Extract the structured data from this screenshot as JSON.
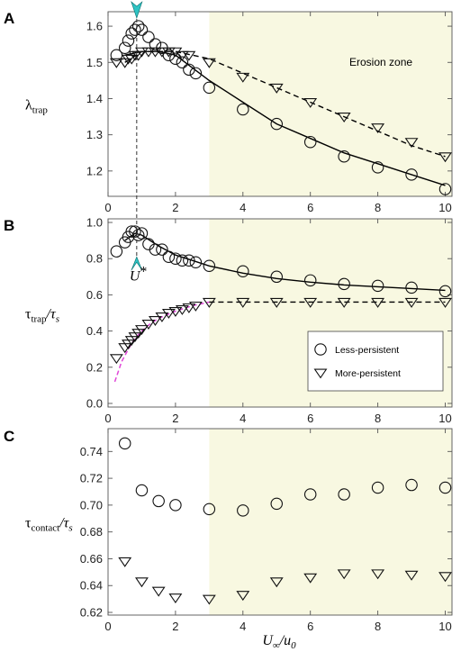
{
  "colors": {
    "erosion_zone": "#f8f8e1",
    "axis": "#555555",
    "marker": "#111111",
    "fit_magenta": "#e046d8",
    "arrow_cyan": "#2ec4c4"
  },
  "annotations": {
    "erosion_zone_label": "Erosion zone",
    "ustar_label": "U*",
    "erosion_start_x": 3,
    "ustar_x": 0.85
  },
  "x_axis": {
    "label": "U∞/u0",
    "label_main": "U",
    "label_sub1": "∞",
    "label_mid": "/u",
    "label_sub2": "0",
    "ticks": [
      0,
      2,
      4,
      6,
      8,
      10
    ],
    "tick_labels": [
      "0",
      "2",
      "4",
      "6",
      "8",
      "10"
    ],
    "xlim": [
      0,
      10.2
    ]
  },
  "legend": {
    "circle_label": "Less-persistent",
    "triangle_label": "More-persistent"
  },
  "chart_data": [
    {
      "panel": "A",
      "type": "scatter",
      "ylabel": "λtrap",
      "ylabel_main": "λ",
      "ylabel_sub": "trap",
      "ylim": [
        1.13,
        1.64
      ],
      "yticks": [
        1.2,
        1.3,
        1.4,
        1.5,
        1.6
      ],
      "ytick_labels": [
        "1.2",
        "1.3",
        "1.4",
        "1.5",
        "1.6"
      ],
      "series": [
        {
          "name": "Less-persistent",
          "marker": "circle",
          "x": [
            0.25,
            0.5,
            0.6,
            0.7,
            0.8,
            0.9,
            1.0,
            1.2,
            1.4,
            1.6,
            1.8,
            2.0,
            2.2,
            2.4,
            2.6,
            3.0,
            4.0,
            5.0,
            6.0,
            7.0,
            8.0,
            9.0,
            10.0
          ],
          "y": [
            1.52,
            1.54,
            1.56,
            1.58,
            1.59,
            1.6,
            1.59,
            1.57,
            1.55,
            1.54,
            1.52,
            1.51,
            1.5,
            1.48,
            1.47,
            1.43,
            1.37,
            1.33,
            1.28,
            1.24,
            1.21,
            1.19,
            1.15
          ]
        },
        {
          "name": "More-persistent",
          "marker": "triangle",
          "x": [
            0.25,
            0.5,
            0.6,
            0.7,
            0.8,
            0.9,
            1.0,
            1.2,
            1.4,
            1.6,
            1.8,
            2.0,
            2.2,
            2.4,
            3.0,
            4.0,
            5.0,
            6.0,
            7.0,
            8.0,
            9.0,
            10.0
          ],
          "y": [
            1.5,
            1.5,
            1.51,
            1.51,
            1.52,
            1.52,
            1.53,
            1.53,
            1.53,
            1.53,
            1.53,
            1.53,
            1.52,
            1.52,
            1.5,
            1.46,
            1.43,
            1.39,
            1.35,
            1.32,
            1.28,
            1.24
          ]
        }
      ],
      "fits": [
        {
          "style": "solid",
          "x": [
            0.5,
            1.0,
            1.5,
            2.0,
            3.0,
            4.0,
            5.0,
            6.0,
            7.0,
            8.0,
            9.0,
            10.0
          ],
          "y": [
            1.52,
            1.53,
            1.53,
            1.52,
            1.45,
            1.39,
            1.33,
            1.29,
            1.25,
            1.22,
            1.19,
            1.16
          ]
        },
        {
          "style": "dashed",
          "x": [
            0.5,
            1.0,
            2.0,
            3.0,
            4.0,
            5.0,
            6.0,
            7.0,
            8.0,
            9.0,
            10.0
          ],
          "y": [
            1.5,
            1.53,
            1.53,
            1.51,
            1.47,
            1.43,
            1.39,
            1.35,
            1.31,
            1.27,
            1.24
          ]
        }
      ]
    },
    {
      "panel": "B",
      "type": "scatter",
      "ylabel": "τtrap/τs",
      "ylabel_main": "τ",
      "ylabel_sub": "trap",
      "ylabel_tail": "/τ",
      "ylabel_sub2": "s",
      "ylim": [
        -0.02,
        1.02
      ],
      "yticks": [
        0.0,
        0.2,
        0.4,
        0.6,
        0.8,
        1.0
      ],
      "ytick_labels": [
        "0.0",
        "0.2",
        "0.4",
        "0.6",
        "0.8",
        "1.0"
      ],
      "legend_position": "lower-right",
      "series": [
        {
          "name": "Less-persistent",
          "marker": "circle",
          "x": [
            0.25,
            0.5,
            0.6,
            0.7,
            0.8,
            0.9,
            1.0,
            1.2,
            1.4,
            1.6,
            1.8,
            2.0,
            2.2,
            2.4,
            2.6,
            3.0,
            4.0,
            5.0,
            6.0,
            7.0,
            8.0,
            9.0,
            10.0
          ],
          "y": [
            0.84,
            0.89,
            0.92,
            0.95,
            0.95,
            0.93,
            0.94,
            0.88,
            0.85,
            0.85,
            0.81,
            0.8,
            0.79,
            0.79,
            0.78,
            0.76,
            0.73,
            0.7,
            0.68,
            0.66,
            0.65,
            0.64,
            0.62
          ]
        },
        {
          "name": "More-persistent",
          "marker": "triangle",
          "x": [
            0.25,
            0.5,
            0.6,
            0.7,
            0.8,
            0.9,
            1.0,
            1.2,
            1.4,
            1.6,
            1.8,
            2.0,
            2.2,
            2.4,
            2.6,
            3.0,
            4.0,
            5.0,
            6.0,
            7.0,
            8.0,
            9.0,
            10.0
          ],
          "y": [
            0.25,
            0.31,
            0.33,
            0.35,
            0.37,
            0.39,
            0.41,
            0.44,
            0.46,
            0.48,
            0.5,
            0.51,
            0.52,
            0.53,
            0.54,
            0.56,
            0.56,
            0.56,
            0.56,
            0.56,
            0.56,
            0.56,
            0.56
          ]
        }
      ],
      "fits": [
        {
          "style": "solid",
          "x": [
            0.5,
            0.8,
            1.0,
            1.5,
            2.0,
            2.5,
            3.0,
            4.0,
            5.0,
            6.0,
            7.0,
            8.0,
            9.0,
            10.0
          ],
          "y": [
            0.9,
            0.94,
            0.93,
            0.87,
            0.82,
            0.79,
            0.76,
            0.72,
            0.69,
            0.67,
            0.655,
            0.645,
            0.635,
            0.625
          ]
        },
        {
          "style": "magenta-dashed",
          "x": [
            0.2,
            0.4,
            0.6,
            0.8,
            1.0,
            1.25,
            1.5,
            1.75,
            2.0,
            2.5,
            3.0
          ],
          "y": [
            0.12,
            0.23,
            0.3,
            0.36,
            0.4,
            0.44,
            0.47,
            0.49,
            0.51,
            0.54,
            0.56
          ]
        },
        {
          "style": "dashed",
          "x": [
            3.0,
            10.0
          ],
          "y": [
            0.56,
            0.56
          ]
        }
      ]
    },
    {
      "panel": "C",
      "type": "scatter",
      "ylabel": "τcontact/τs",
      "ylabel_main": "τ",
      "ylabel_sub": "contact",
      "ylabel_tail": "/τ",
      "ylabel_sub2": "s",
      "ylim": [
        0.618,
        0.757
      ],
      "yticks": [
        0.62,
        0.64,
        0.66,
        0.68,
        0.7,
        0.72,
        0.74
      ],
      "ytick_labels": [
        "0.62",
        "0.64",
        "0.66",
        "0.68",
        "0.70",
        "0.72",
        "0.74"
      ],
      "series": [
        {
          "name": "Less-persistent",
          "marker": "circle",
          "x": [
            0.5,
            1.0,
            1.5,
            2.0,
            3.0,
            4.0,
            5.0,
            6.0,
            7.0,
            8.0,
            9.0,
            10.0
          ],
          "y": [
            0.746,
            0.711,
            0.703,
            0.7,
            0.697,
            0.696,
            0.701,
            0.708,
            0.708,
            0.713,
            0.715,
            0.713
          ]
        },
        {
          "name": "More-persistent",
          "marker": "triangle",
          "x": [
            0.5,
            1.0,
            1.5,
            2.0,
            3.0,
            4.0,
            5.0,
            6.0,
            7.0,
            8.0,
            9.0,
            10.0
          ],
          "y": [
            0.658,
            0.643,
            0.636,
            0.631,
            0.63,
            0.633,
            0.643,
            0.646,
            0.649,
            0.649,
            0.648,
            0.647
          ]
        }
      ]
    }
  ]
}
